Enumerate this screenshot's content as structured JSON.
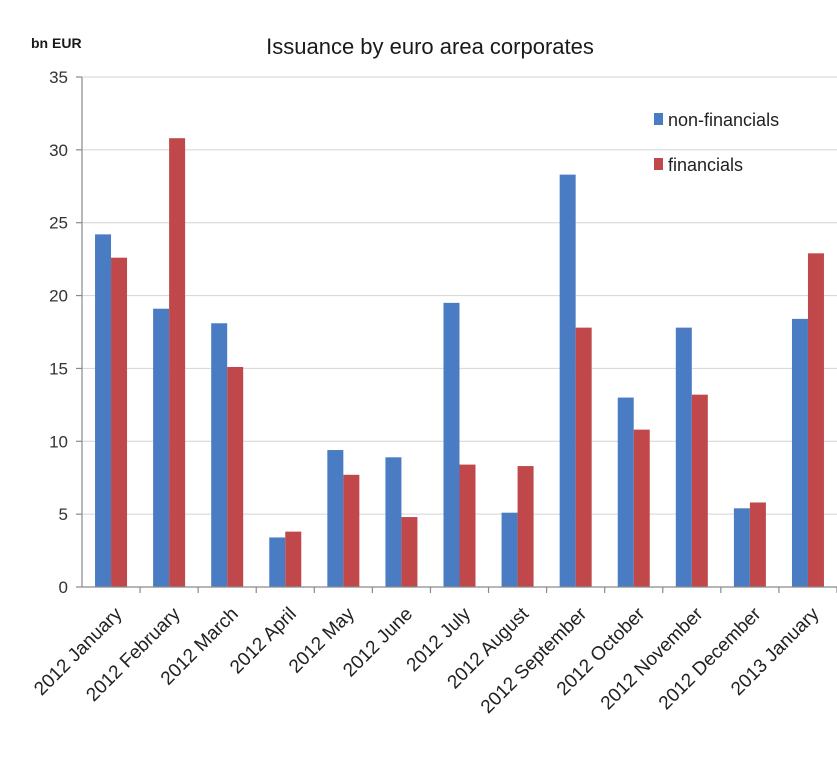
{
  "chart_data": {
    "type": "bar",
    "title": "Issuance by euro area corporates",
    "unit_label": "bn EUR",
    "categories": [
      "2012 January",
      "2012 February",
      "2012 March",
      "2012 April",
      "2012 May",
      "2012 June",
      "2012 July",
      "2012 August",
      "2012 September",
      "2012 October",
      "2012 November",
      "2012 December",
      "2013 January"
    ],
    "series": [
      {
        "name": "non-financials",
        "color": "#4a7cc4",
        "values": [
          24.2,
          19.1,
          18.1,
          3.4,
          9.4,
          8.9,
          19.5,
          5.1,
          28.3,
          13.0,
          17.8,
          5.4,
          18.4
        ]
      },
      {
        "name": "financials",
        "color": "#c0474a",
        "values": [
          22.6,
          30.8,
          15.1,
          3.8,
          7.7,
          4.8,
          8.4,
          8.3,
          17.8,
          10.8,
          13.2,
          5.8,
          22.9
        ]
      }
    ],
    "ylim": [
      0,
      35
    ],
    "yticks": [
      0,
      5,
      10,
      15,
      20,
      25,
      30,
      35
    ],
    "grid": true,
    "legend_position": "top-right"
  }
}
